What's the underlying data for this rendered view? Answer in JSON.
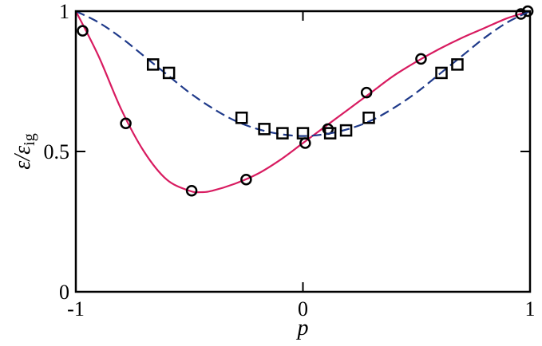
{
  "chart_data": {
    "type": "scatter",
    "xlabel": "p",
    "ylabel": {
      "main": "ε/ε",
      "sub": "ig"
    },
    "xlim": [
      -1,
      1
    ],
    "ylim": [
      0,
      1
    ],
    "xticks": [
      {
        "value": -1,
        "label": "-1"
      },
      {
        "value": 0,
        "label": "0"
      },
      {
        "value": 1,
        "label": "1"
      }
    ],
    "yticks": [
      {
        "value": 0,
        "label": "0"
      },
      {
        "value": 0.5,
        "label": "0.5"
      },
      {
        "value": 1,
        "label": "1"
      }
    ],
    "grid": false,
    "series": [
      {
        "marker": "circle",
        "line_style": "solid",
        "color": "#d81b60",
        "points": [
          [
            -0.97,
            0.93
          ],
          [
            -0.78,
            0.6
          ],
          [
            -0.49,
            0.36
          ],
          [
            -0.25,
            0.4
          ],
          [
            0.01,
            0.53
          ],
          [
            0.11,
            0.58
          ],
          [
            0.28,
            0.71
          ],
          [
            0.52,
            0.83
          ],
          [
            0.96,
            0.99
          ],
          [
            0.99,
            1.0
          ]
        ],
        "curve": [
          [
            -1.0,
            1.0
          ],
          [
            -0.9,
            0.84
          ],
          [
            -0.8,
            0.65
          ],
          [
            -0.7,
            0.5
          ],
          [
            -0.6,
            0.4
          ],
          [
            -0.5,
            0.36
          ],
          [
            -0.45,
            0.355
          ],
          [
            -0.4,
            0.36
          ],
          [
            -0.3,
            0.385
          ],
          [
            -0.2,
            0.42
          ],
          [
            -0.1,
            0.47
          ],
          [
            0.0,
            0.53
          ],
          [
            0.1,
            0.59
          ],
          [
            0.2,
            0.65
          ],
          [
            0.3,
            0.71
          ],
          [
            0.4,
            0.77
          ],
          [
            0.5,
            0.82
          ],
          [
            0.6,
            0.865
          ],
          [
            0.7,
            0.905
          ],
          [
            0.8,
            0.94
          ],
          [
            0.9,
            0.975
          ],
          [
            1.0,
            1.0
          ]
        ]
      },
      {
        "marker": "square",
        "line_style": "dashed",
        "color": "#1f3a8a",
        "points": [
          [
            -0.66,
            0.81
          ],
          [
            -0.59,
            0.78
          ],
          [
            -0.27,
            0.62
          ],
          [
            -0.17,
            0.58
          ],
          [
            -0.09,
            0.565
          ],
          [
            0.0,
            0.565
          ],
          [
            0.12,
            0.565
          ],
          [
            0.19,
            0.575
          ],
          [
            0.29,
            0.62
          ],
          [
            0.61,
            0.78
          ],
          [
            0.68,
            0.81
          ]
        ],
        "curve": [
          [
            -1.0,
            1.0
          ],
          [
            -0.9,
            0.96
          ],
          [
            -0.8,
            0.905
          ],
          [
            -0.7,
            0.84
          ],
          [
            -0.6,
            0.775
          ],
          [
            -0.5,
            0.71
          ],
          [
            -0.4,
            0.655
          ],
          [
            -0.3,
            0.61
          ],
          [
            -0.2,
            0.58
          ],
          [
            -0.1,
            0.562
          ],
          [
            0.0,
            0.555
          ],
          [
            0.1,
            0.562
          ],
          [
            0.2,
            0.58
          ],
          [
            0.3,
            0.61
          ],
          [
            0.4,
            0.655
          ],
          [
            0.5,
            0.71
          ],
          [
            0.6,
            0.775
          ],
          [
            0.7,
            0.84
          ],
          [
            0.8,
            0.905
          ],
          [
            0.9,
            0.96
          ],
          [
            1.0,
            1.0
          ]
        ]
      }
    ]
  }
}
